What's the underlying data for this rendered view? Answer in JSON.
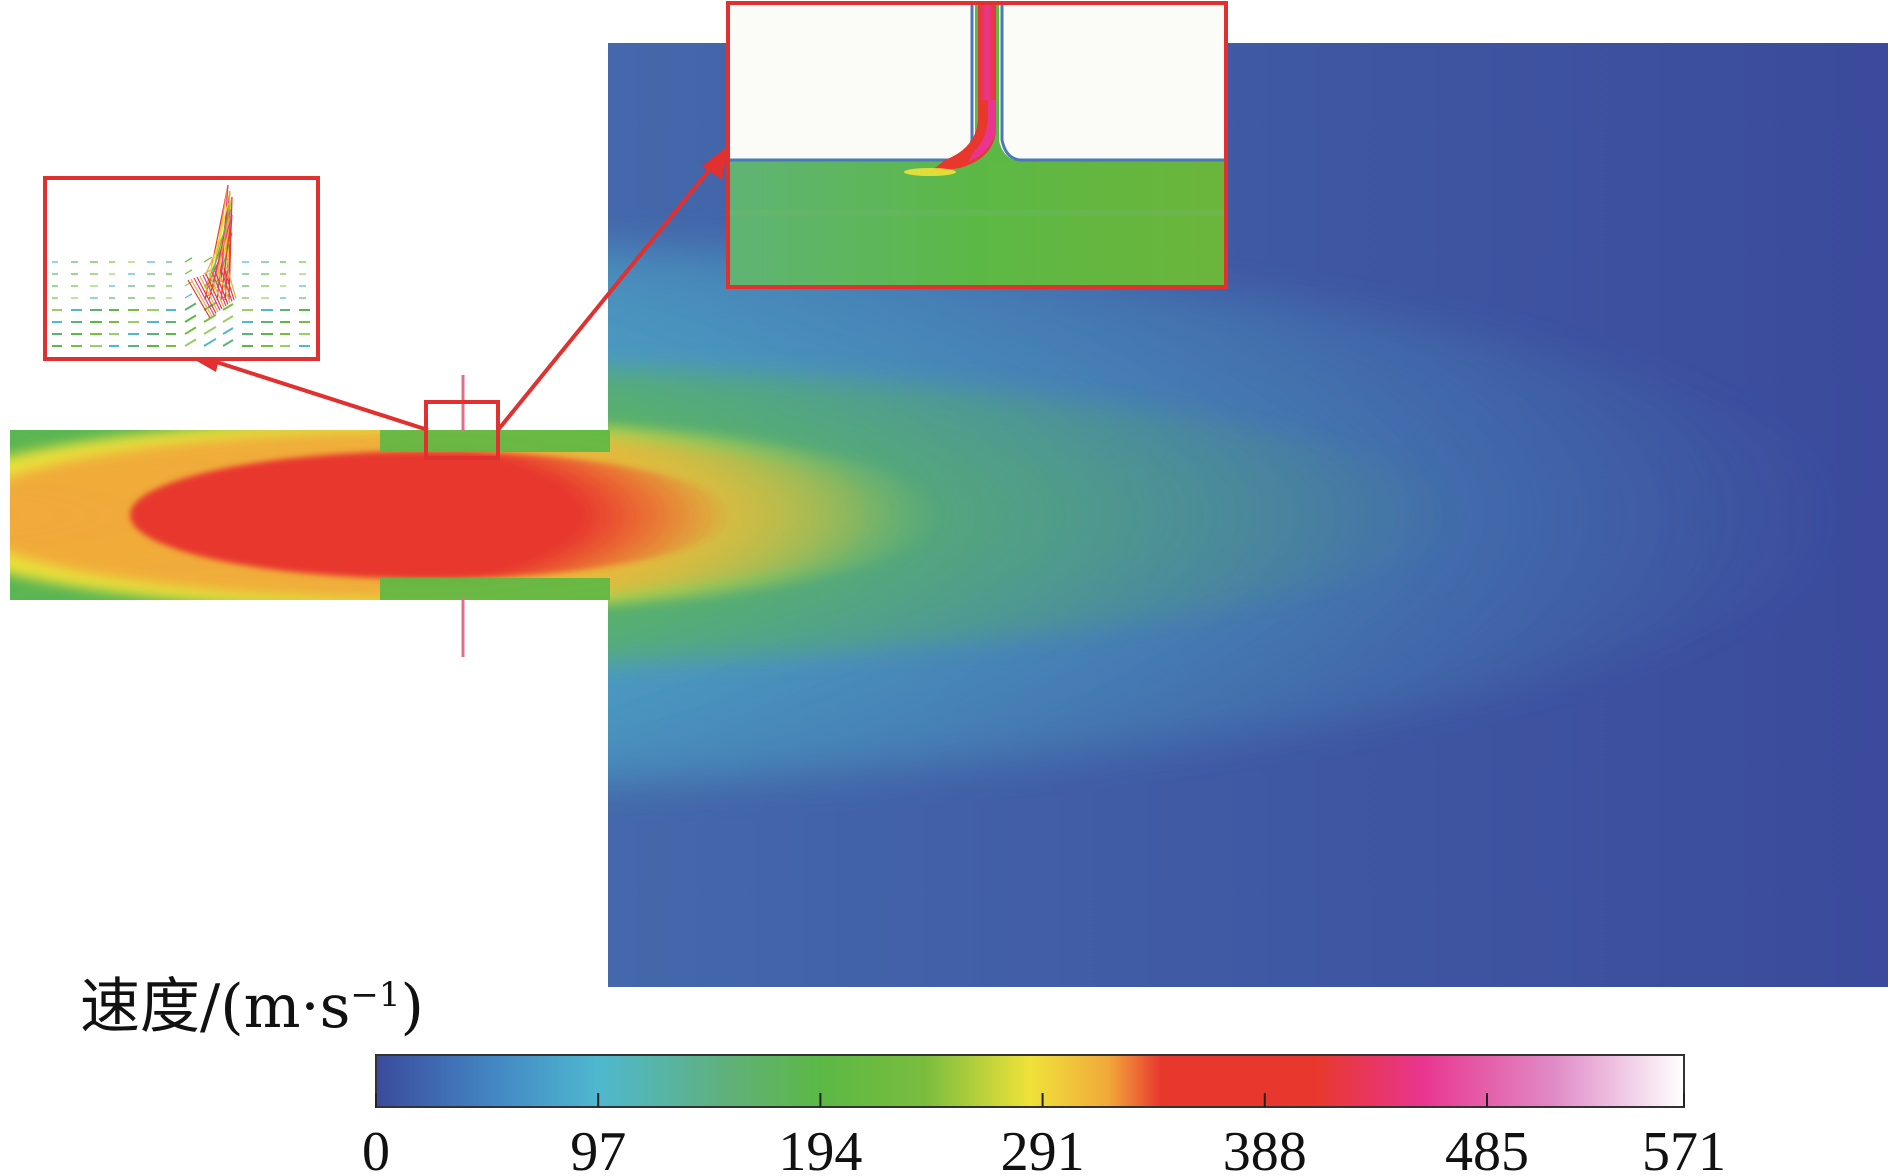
{
  "colors": {
    "c0": "#3b4a9c",
    "c97": "#4fb8cf",
    "c194": "#5cb845",
    "c291": "#efe23a",
    "c388": "#e8382e",
    "c485": "#e9358f",
    "c571": "#ffffff",
    "callout": "#e03030"
  },
  "legend": {
    "title_main": "速度/(m",
    "title_dot": "·",
    "title_unit": "s",
    "title_exp": "−1",
    "title_close": ")"
  },
  "chart_data": {
    "type": "heatmap",
    "colorbar": {
      "min": 0,
      "max": 571,
      "ticks": [
        "0",
        "97",
        "194",
        "291",
        "388",
        "485",
        "571"
      ]
    }
  }
}
